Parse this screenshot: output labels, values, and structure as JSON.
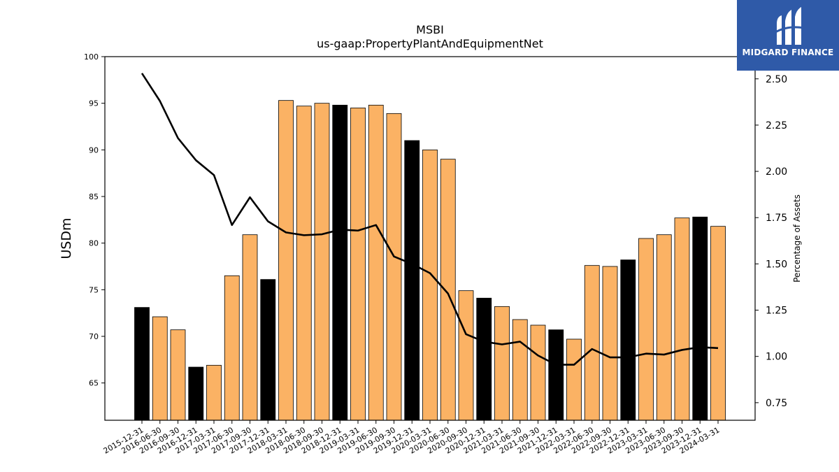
{
  "logo": {
    "text": "MIDGARD FINANCE",
    "icon": "midgard-logo-icon",
    "background": "#2f5aa8"
  },
  "chart_data": {
    "type": "bar",
    "title": "MSBI",
    "subtitle": "us-gaap:PropertyPlantAndEquipmentNet",
    "ylabel": "USDm",
    "y2label": "Percentage of Assets",
    "ylim": [
      61,
      100
    ],
    "y2lim": [
      0.655,
      2.62
    ],
    "yticks": [
      65,
      70,
      75,
      80,
      85,
      90,
      95,
      100
    ],
    "y2ticks": [
      0.75,
      1.0,
      1.25,
      1.5,
      1.75,
      2.0,
      2.25,
      2.5
    ],
    "categories": [
      "2015-12-31",
      "2016-06-30",
      "2016-09-30",
      "2016-12-31",
      "2017-03-31",
      "2017-06-30",
      "2017-09-30",
      "2017-12-31",
      "2018-03-31",
      "2018-06-30",
      "2018-09-30",
      "2018-12-31",
      "2019-03-31",
      "2019-06-30",
      "2019-09-30",
      "2019-12-31",
      "2020-03-31",
      "2020-06-30",
      "2020-09-30",
      "2020-12-31",
      "2021-03-31",
      "2021-06-30",
      "2021-09-30",
      "2021-12-31",
      "2022-03-31",
      "2022-06-30",
      "2022-09-30",
      "2022-12-31",
      "2023-03-31",
      "2023-06-30",
      "2023-09-30",
      "2023-12-31",
      "2024-03-31"
    ],
    "series": [
      {
        "type": "bar",
        "axis": "left",
        "values": [
          73.1,
          72.1,
          70.7,
          66.7,
          66.9,
          76.5,
          80.9,
          76.1,
          95.3,
          94.7,
          95.0,
          94.8,
          94.5,
          94.8,
          93.9,
          91.0,
          90.0,
          89.0,
          74.9,
          74.1,
          73.2,
          71.8,
          71.2,
          70.7,
          69.7,
          77.6,
          77.5,
          78.2,
          80.5,
          80.9,
          82.7,
          82.8,
          81.8
        ],
        "highlight": [
          true,
          false,
          false,
          true,
          false,
          false,
          false,
          true,
          false,
          false,
          false,
          true,
          false,
          false,
          false,
          true,
          false,
          false,
          false,
          true,
          false,
          false,
          false,
          true,
          false,
          false,
          false,
          true,
          false,
          false,
          false,
          true,
          false
        ]
      },
      {
        "type": "line",
        "axis": "right",
        "values": [
          2.53,
          2.38,
          2.18,
          2.06,
          1.98,
          1.71,
          1.86,
          1.73,
          1.67,
          1.655,
          1.66,
          1.685,
          1.68,
          1.71,
          1.54,
          1.5,
          1.45,
          1.34,
          1.12,
          1.08,
          1.065,
          1.08,
          1.005,
          0.955,
          0.955,
          1.04,
          0.995,
          0.995,
          1.015,
          1.01,
          1.035,
          1.05,
          1.045
        ]
      }
    ],
    "colors": {
      "bar": "#fbb264",
      "bar_highlight": "#000000",
      "line": "#000000"
    },
    "grid": false,
    "legend": "none"
  }
}
